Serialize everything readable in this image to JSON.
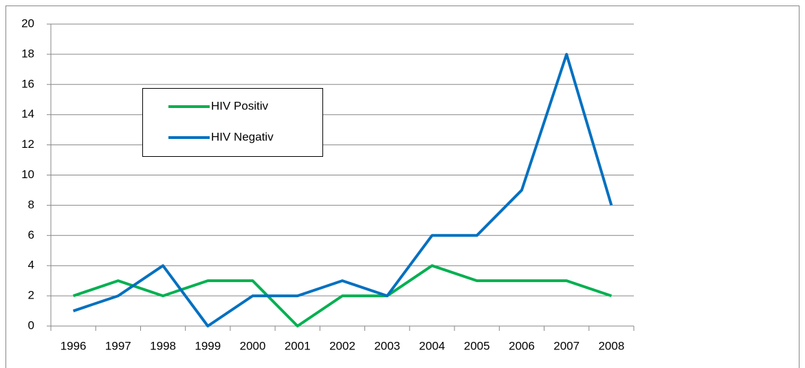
{
  "chart_data": {
    "type": "line",
    "categories": [
      "1996",
      "1997",
      "1998",
      "1999",
      "2000",
      "2001",
      "2002",
      "2003",
      "2004",
      "2005",
      "2006",
      "2007",
      "2008"
    ],
    "series": [
      {
        "name": "HIV Positiv",
        "color": "#00b050",
        "values": [
          2,
          3,
          2,
          3,
          3,
          0,
          2,
          2,
          4,
          3,
          3,
          3,
          2
        ]
      },
      {
        "name": "HIV Negativ",
        "color": "#0070c0",
        "values": [
          1,
          2,
          4,
          0,
          2,
          2,
          3,
          2,
          6,
          6,
          9,
          18,
          8
        ]
      }
    ],
    "ylim": [
      0,
      20
    ],
    "yticks": [
      0,
      2,
      4,
      6,
      8,
      10,
      12,
      14,
      16,
      18,
      20
    ],
    "grid": true,
    "legend": "upper left"
  }
}
